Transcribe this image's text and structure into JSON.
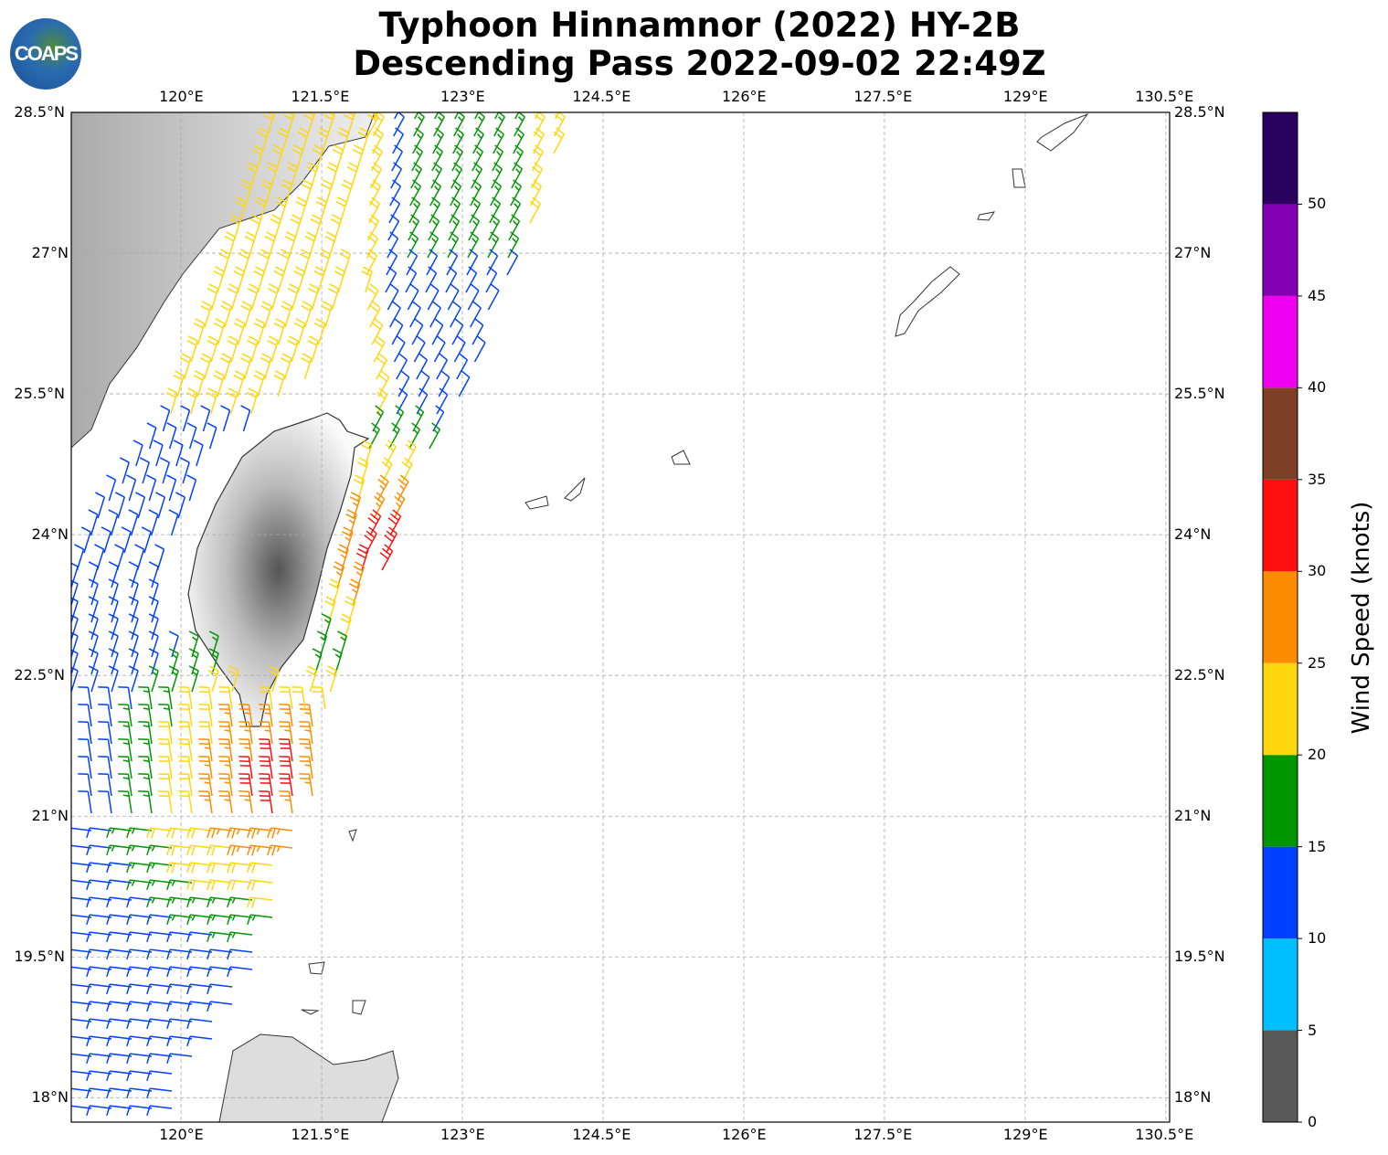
{
  "title": {
    "line1": "Typhoon Hinnamnor (2022) HY-2B",
    "line2": "Descending Pass 2022-09-02 22:49Z"
  },
  "logo": {
    "text": "COAPS"
  },
  "map": {
    "lon_range": [
      118.83,
      130.54
    ],
    "lat_range": [
      17.74,
      28.5
    ],
    "lon_ticks": [
      {
        "v": 120,
        "label": "120°E"
      },
      {
        "v": 121.5,
        "label": "121.5°E"
      },
      {
        "v": 123,
        "label": "123°E"
      },
      {
        "v": 124.5,
        "label": "124.5°E"
      },
      {
        "v": 126,
        "label": "126°E"
      },
      {
        "v": 127.5,
        "label": "127.5°E"
      },
      {
        "v": 129,
        "label": "129°E"
      },
      {
        "v": 130.5,
        "label": "130.5°E"
      }
    ],
    "lat_ticks": [
      {
        "v": 28.5,
        "label": "28.5°N"
      },
      {
        "v": 27,
        "label": "27°N"
      },
      {
        "v": 25.5,
        "label": "25.5°N"
      },
      {
        "v": 24,
        "label": "24°N"
      },
      {
        "v": 22.5,
        "label": "22.5°N"
      },
      {
        "v": 21,
        "label": "21°N"
      },
      {
        "v": 19.5,
        "label": "19.5°N"
      },
      {
        "v": 18,
        "label": "18°N"
      }
    ]
  },
  "colorbar": {
    "title": "Wind Speed (knots)",
    "range": [
      0,
      55
    ],
    "ticks": [
      "0",
      "5",
      "10",
      "15",
      "20",
      "25",
      "30",
      "35",
      "40",
      "45",
      "50"
    ],
    "colors": [
      "#595959",
      "#00bfff",
      "#0040ff",
      "#009600",
      "#ffd70f",
      "#ff8c00",
      "#ff1010",
      "#7f3f27",
      "#f000f0",
      "#8400b4",
      "#2a0060"
    ]
  }
}
